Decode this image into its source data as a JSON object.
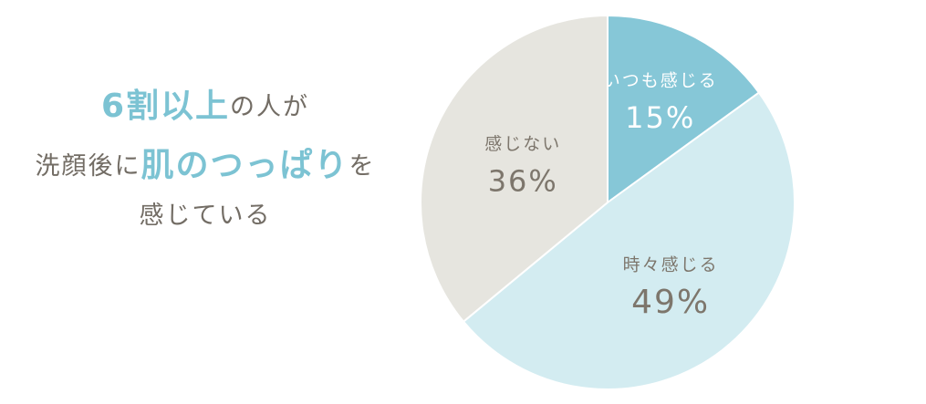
{
  "headline": {
    "lines": [
      [
        {
          "text": "6割以上",
          "highlight": true
        },
        {
          "text": "の人が",
          "highlight": false
        }
      ],
      [
        {
          "text": "洗顔後に",
          "highlight": false
        },
        {
          "text": "肌のつっぱり",
          "highlight": true
        },
        {
          "text": "を",
          "highlight": false
        }
      ],
      [
        {
          "text": "感じている",
          "highlight": false
        }
      ]
    ],
    "color": "#736d65",
    "highlight_color": "#7cc3d3"
  },
  "chart_data": {
    "type": "pie",
    "categories": [
      "いつも感じる",
      "時々感じる",
      "感じない"
    ],
    "values": [
      15,
      49,
      36
    ],
    "value_labels": [
      "15%",
      "49%",
      "36%"
    ],
    "colors": [
      "#86c7d7",
      "#d3ecf1",
      "#e6e5df"
    ],
    "label_colors": [
      "#ffffff",
      "#7d766c",
      "#7d766c"
    ]
  }
}
